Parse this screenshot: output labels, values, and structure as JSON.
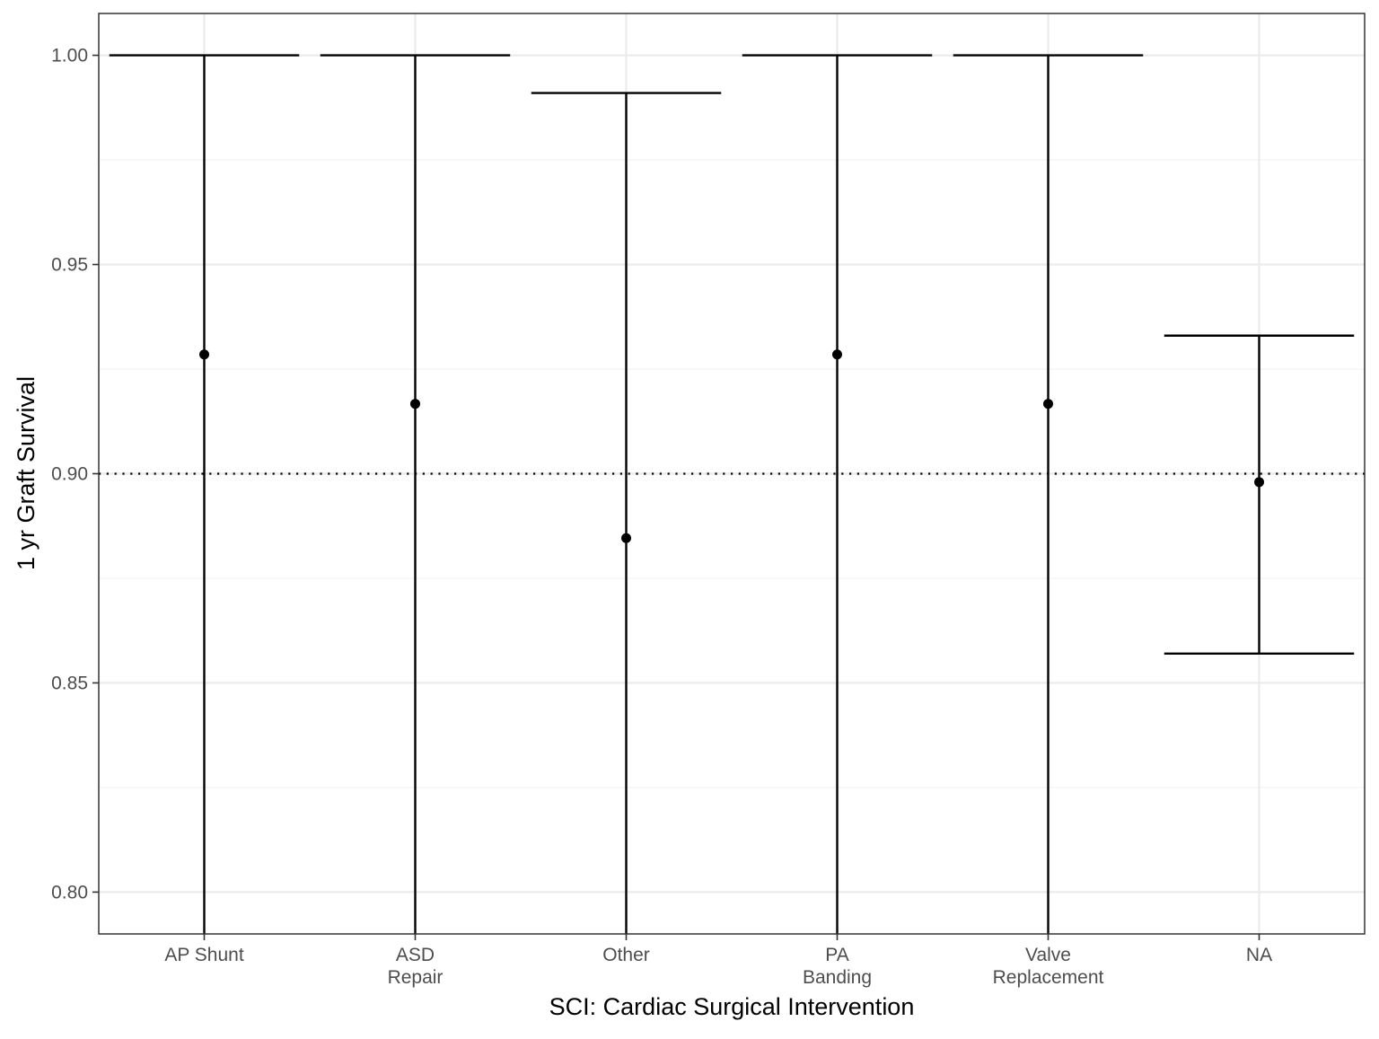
{
  "chart_data": {
    "type": "errorbar",
    "title": "",
    "xlabel": "SCI: Cardiac Surgical Intervention",
    "ylabel": "1 yr Graft Survival",
    "ylim": [
      0.79,
      1.01
    ],
    "yticks": [
      0.8,
      0.85,
      0.9,
      0.95,
      1.0
    ],
    "ytick_labels": [
      "0.80",
      "0.85",
      "0.90",
      "0.95",
      "1.00"
    ],
    "reference_line": {
      "y": 0.9,
      "style": "dotted"
    },
    "grid": true,
    "categories": [
      {
        "label": [
          "AP Shunt"
        ],
        "estimate": 0.9285,
        "lower": 0.79,
        "upper": 1.0
      },
      {
        "label": [
          "ASD",
          "Repair"
        ],
        "estimate": 0.9167,
        "lower": 0.79,
        "upper": 1.0
      },
      {
        "label": [
          "Other"
        ],
        "estimate": 0.8846,
        "lower": 0.79,
        "upper": 0.991
      },
      {
        "label": [
          "PA",
          "Banding"
        ],
        "estimate": 0.9285,
        "lower": 0.79,
        "upper": 1.0
      },
      {
        "label": [
          "Valve",
          "Replacement"
        ],
        "estimate": 0.9167,
        "lower": 0.79,
        "upper": 1.0
      },
      {
        "label": [
          "NA"
        ],
        "estimate": 0.898,
        "lower": 0.857,
        "upper": 0.933
      }
    ]
  }
}
